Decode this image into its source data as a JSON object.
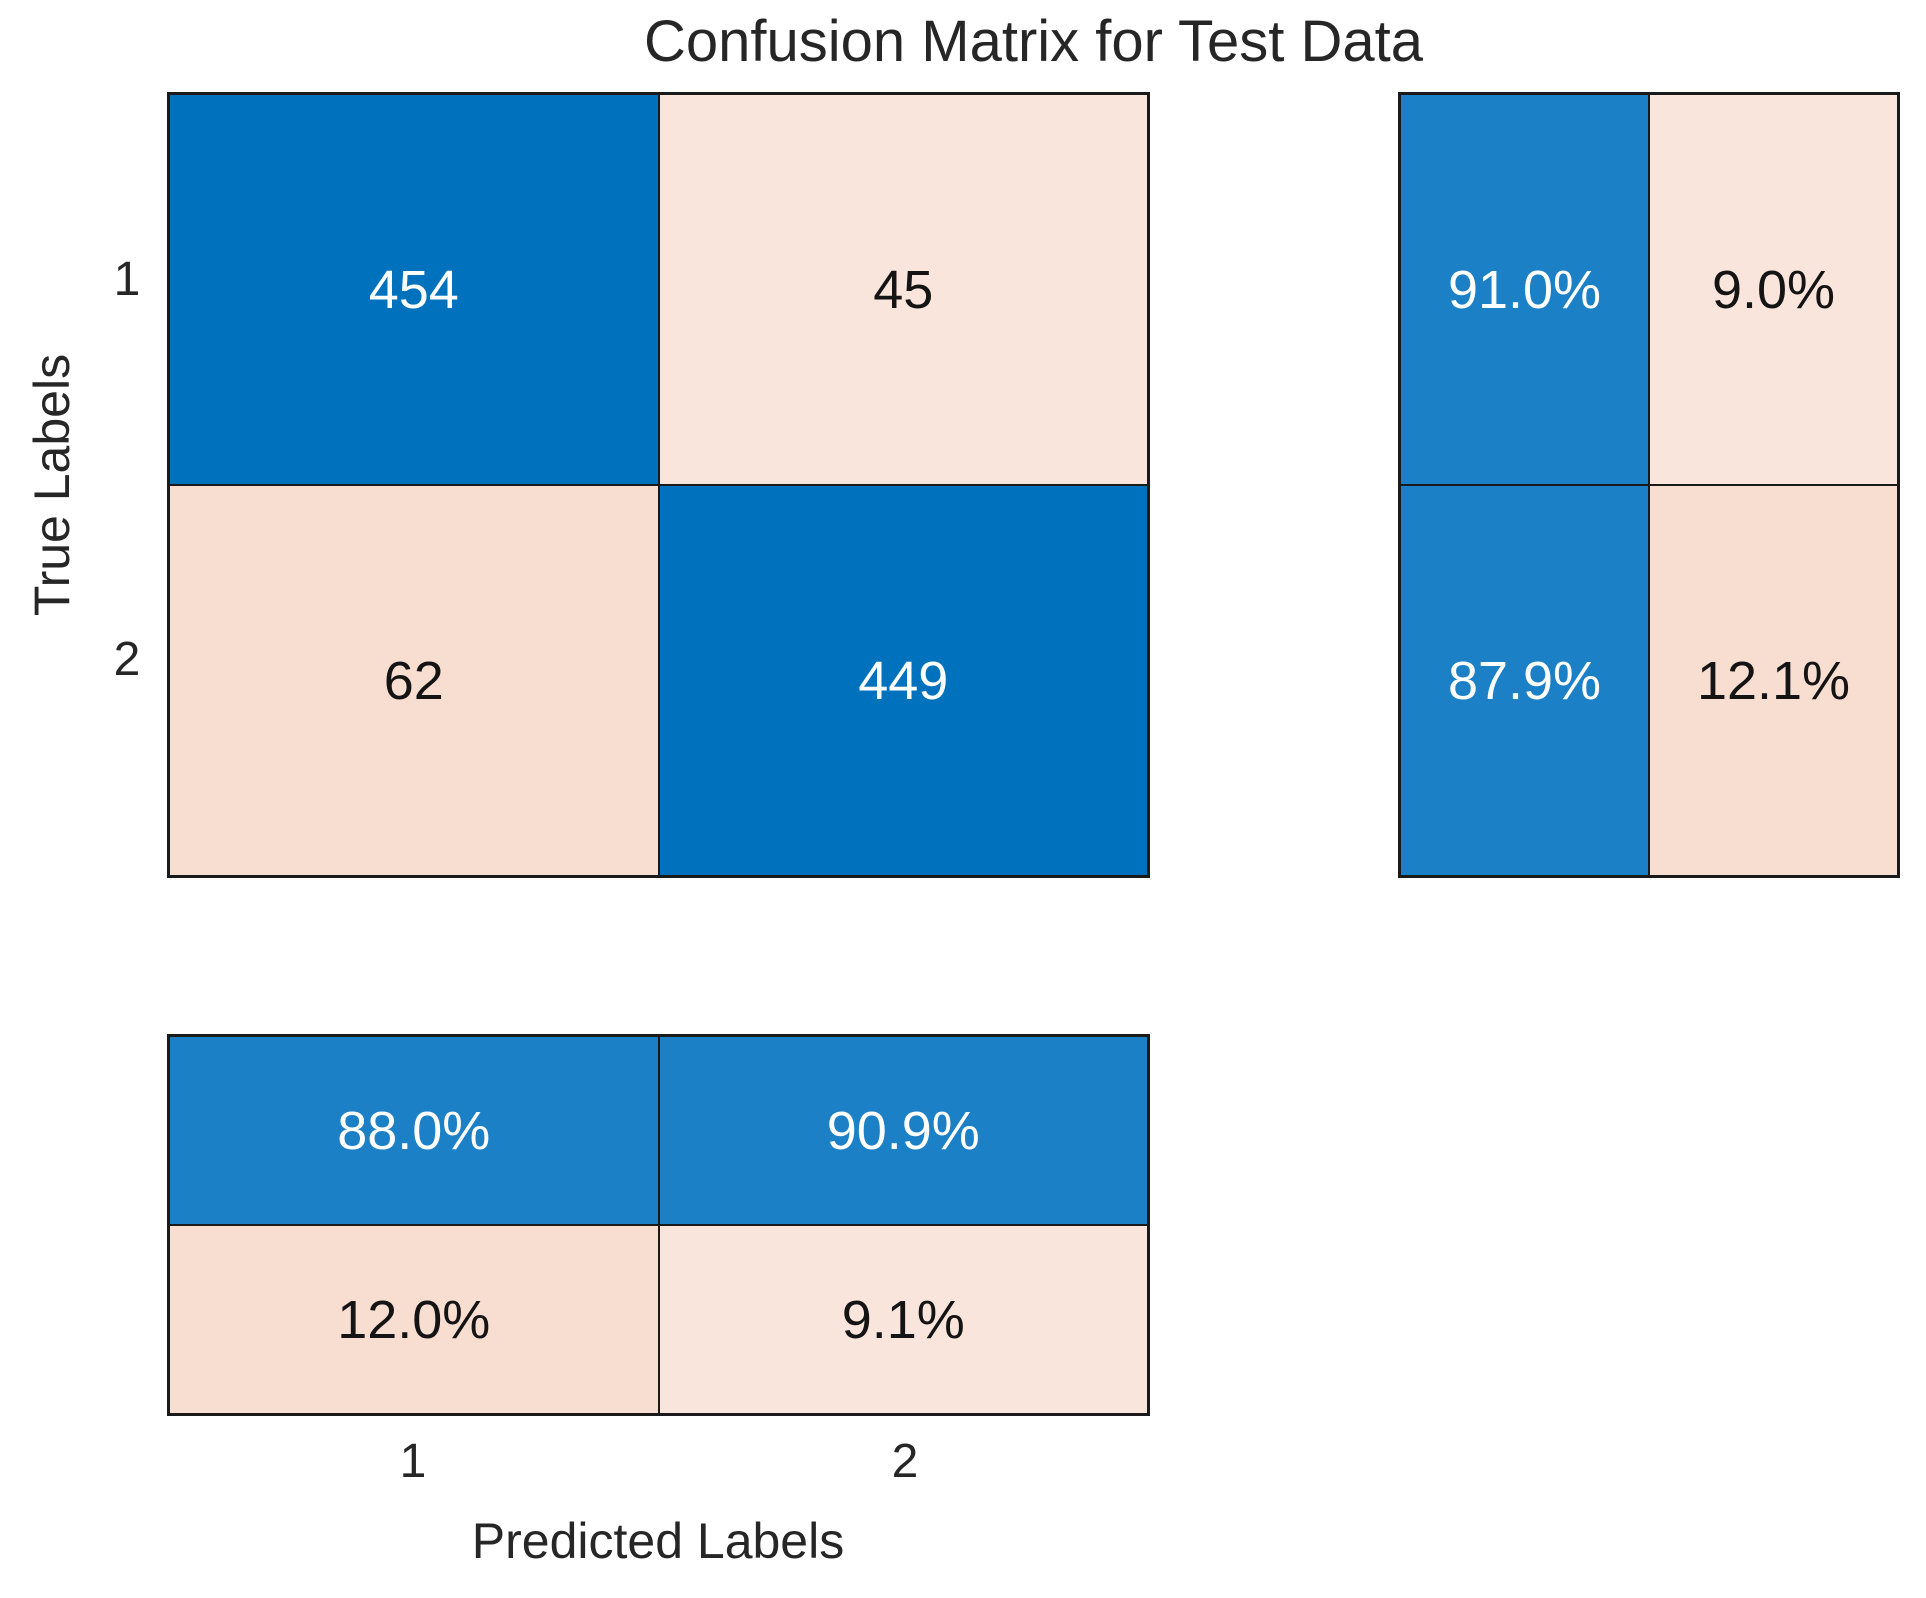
{
  "title": "Confusion Matrix for Test Data",
  "axes": {
    "x_label": "Predicted Labels",
    "y_label": "True Labels",
    "x_ticks": [
      "1",
      "2"
    ],
    "y_ticks": [
      "1",
      "2"
    ]
  },
  "colors": {
    "diagonal_blue": "#0072BD",
    "summary_blue": "#1B80C5",
    "off_diagonal_pink_light": "#FAE5DC",
    "off_diagonal_pink": "#F8DDD1",
    "grid_line": "#1A1A1A",
    "text_dark": "#262626",
    "text_light": "#FFFFFF",
    "background": "#FFFFFF"
  },
  "matrix": {
    "counts": {
      "r1c1": "454",
      "r1c2": "45",
      "r2c1": "62",
      "r2c2": "449"
    }
  },
  "row_summary": {
    "r1_correct": "91.0%",
    "r1_incorrect": "9.0%",
    "r2_correct": "87.9%",
    "r2_incorrect": "12.1%"
  },
  "column_summary": {
    "c1_correct": "88.0%",
    "c2_correct": "90.9%",
    "c1_incorrect": "12.0%",
    "c2_incorrect": "9.1%"
  },
  "chart_data": {
    "type": "heatmap",
    "subtype": "confusion_matrix",
    "title": "Confusion Matrix for Test Data",
    "xlabel": "Predicted Labels",
    "ylabel": "True Labels",
    "classes": [
      "1",
      "2"
    ],
    "matrix_counts": [
      [
        454,
        45
      ],
      [
        62,
        449
      ]
    ],
    "row_normalized_pct": [
      [
        91.0,
        9.0
      ],
      [
        87.9,
        12.1
      ]
    ],
    "column_normalized_pct": [
      [
        88.0,
        12.0
      ],
      [
        90.9,
        9.1
      ]
    ],
    "layout": {
      "row_summary_position": "right",
      "column_summary_position": "bottom",
      "legend": "none",
      "grid": "cell-borders",
      "diagonal_color": "#0072BD",
      "off_diagonal_color": "#F8DDD1"
    }
  }
}
